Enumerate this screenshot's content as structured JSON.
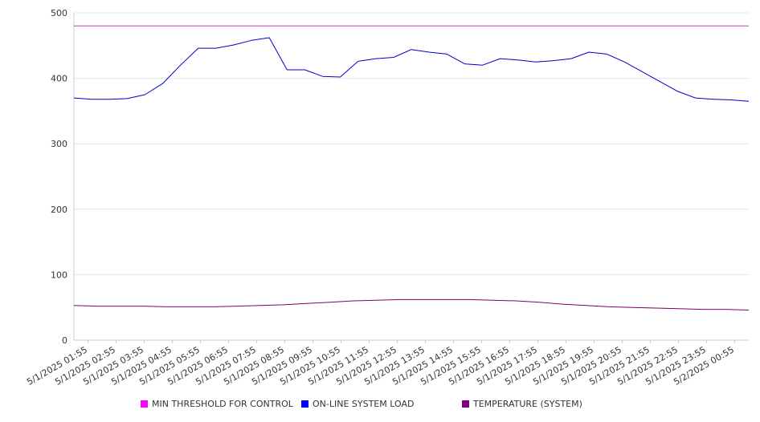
{
  "chart_data": {
    "type": "line",
    "title": "",
    "xlabel": "",
    "ylabel": "",
    "ylim": [
      0,
      500
    ],
    "yticks": [
      0,
      100,
      200,
      300,
      400,
      500
    ],
    "grid": true,
    "legend_position": "bottom",
    "x_tick_labels": [
      "5/1/2025 01:55",
      "5/1/2025 02:55",
      "5/1/2025 03:55",
      "5/1/2025 04:55",
      "5/1/2025 05:55",
      "5/1/2025 06:55",
      "5/1/2025 07:55",
      "5/1/2025 08:55",
      "5/1/2025 09:55",
      "5/1/2025 10:55",
      "5/1/2025 11:55",
      "5/1/2025 12:55",
      "5/1/2025 13:55",
      "5/1/2025 14:55",
      "5/1/2025 15:55",
      "5/1/2025 16:55",
      "5/1/2025 17:55",
      "5/1/2025 18:55",
      "5/1/2025 19:55",
      "5/1/2025 20:55",
      "5/1/2025 21:55",
      "5/1/2025 22:55",
      "5/1/2025 23:55",
      "5/2/2025 00:55"
    ],
    "series": [
      {
        "name": "MIN THRESHOLD FOR CONTROL",
        "color": "#cc33cc",
        "legend_color": "#ff00ff",
        "values": [
          480,
          480,
          480,
          480,
          480,
          480,
          480,
          480,
          480,
          480,
          480,
          480,
          480,
          480,
          480,
          480,
          480,
          480,
          480,
          480,
          480,
          480,
          480,
          480,
          480
        ]
      },
      {
        "name": "ON-LINE SYSTEM LOAD",
        "color": "#0000cc",
        "legend_color": "#0000ff",
        "values": [
          370,
          368,
          368,
          369,
          375,
          392,
          420,
          446,
          446,
          451,
          458,
          462,
          413,
          413,
          403,
          402,
          426,
          430,
          432,
          444,
          440,
          437,
          422,
          420,
          430,
          428,
          425,
          427,
          430,
          440,
          437,
          425,
          410,
          395,
          380,
          370,
          368,
          367,
          365
        ]
      },
      {
        "name": "TEMPERATURE (SYSTEM)",
        "color": "#800060",
        "legend_color": "#800080",
        "values": [
          53,
          52,
          52,
          52,
          51,
          51,
          51,
          52,
          53,
          54,
          56,
          58,
          60,
          61,
          62,
          62,
          62,
          62,
          61,
          60,
          58,
          55,
          53,
          51,
          50,
          49,
          48,
          47,
          47,
          46
        ]
      }
    ]
  }
}
